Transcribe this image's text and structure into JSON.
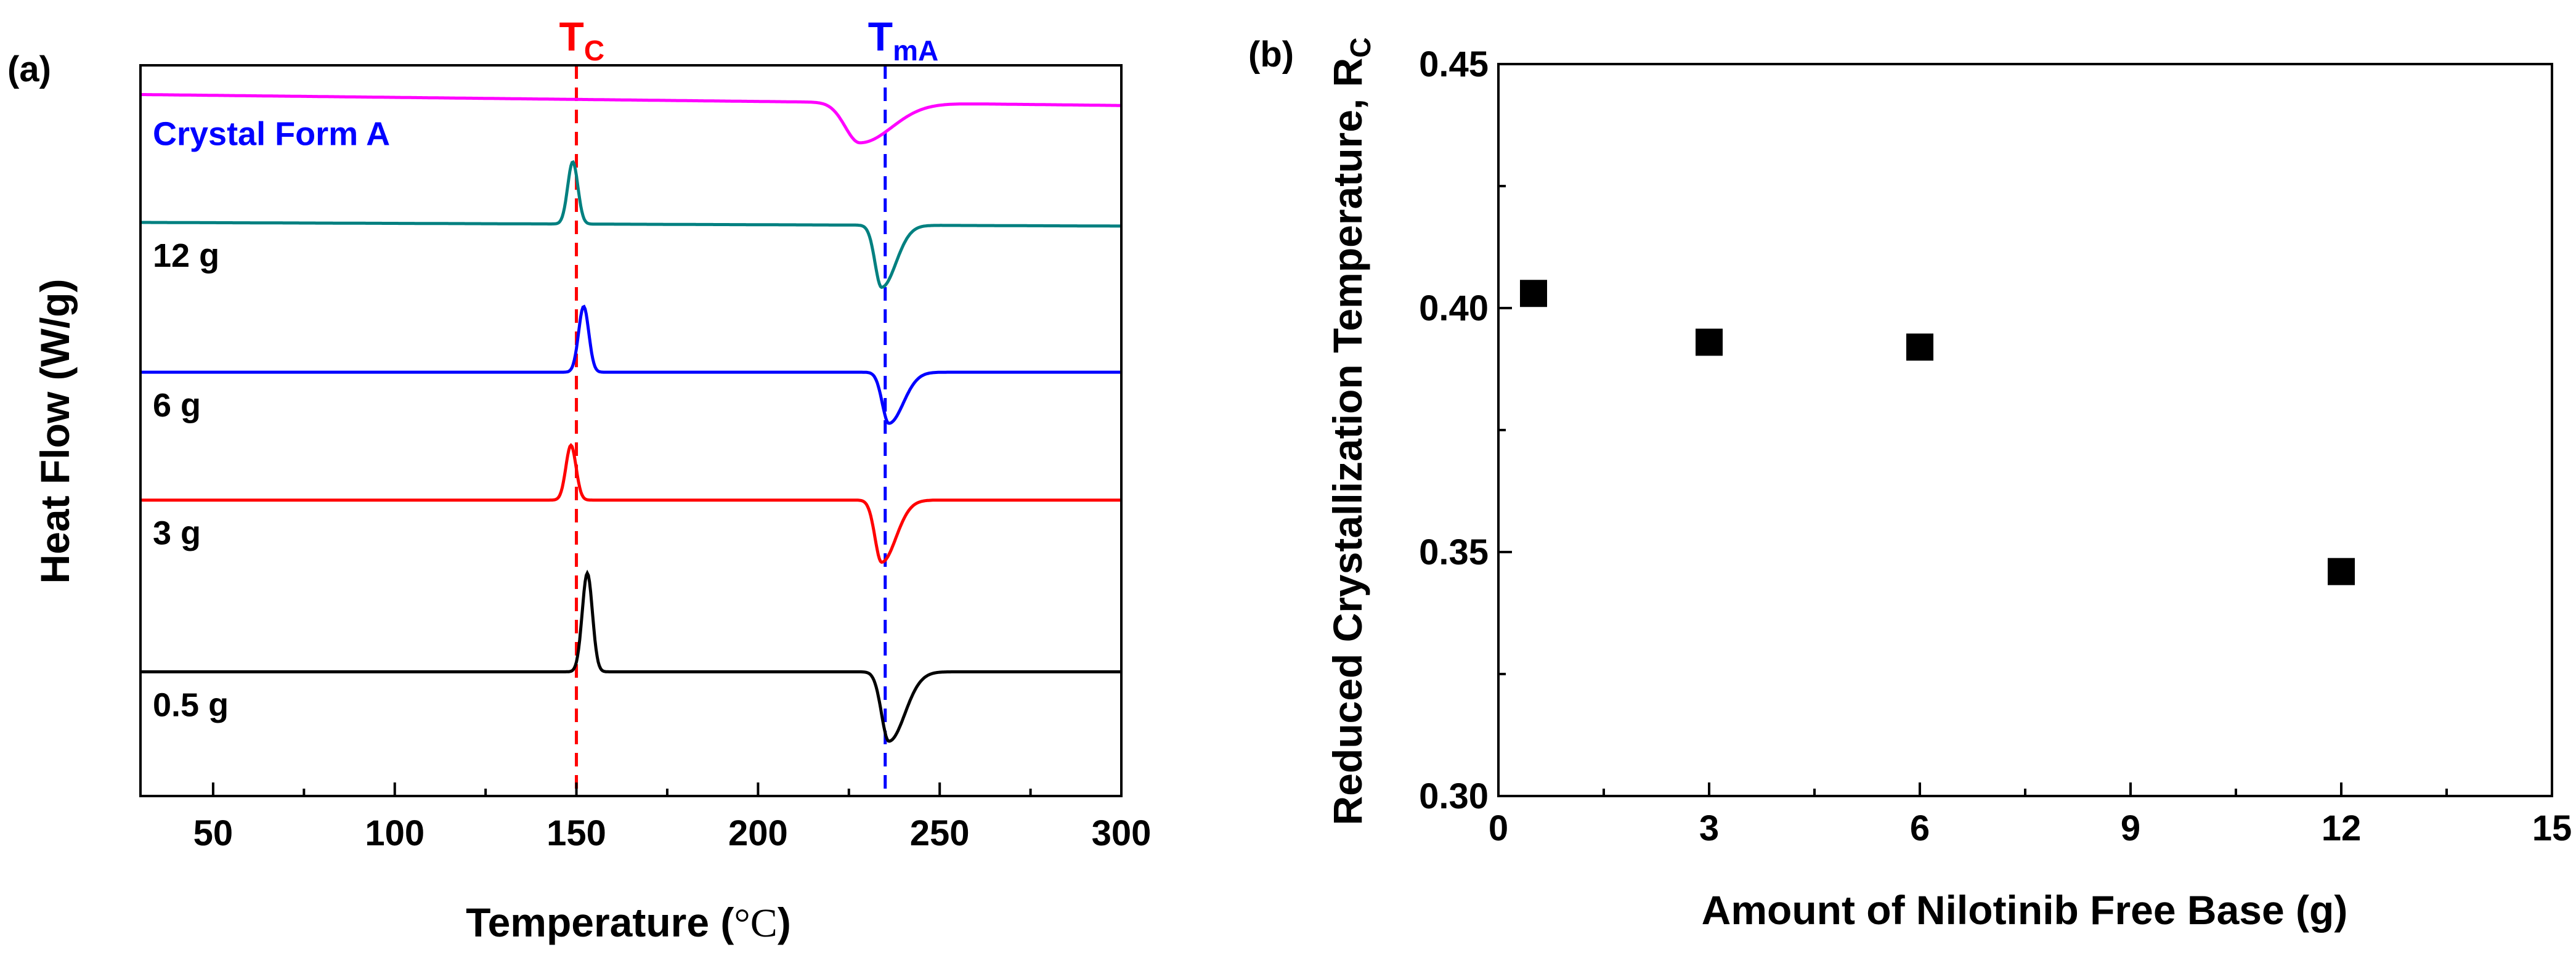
{
  "chart_data": [
    {
      "panel": "(a)",
      "type": "line",
      "xlabel": "Temperature (",
      "xlabel_unit": "°C",
      "xlabel_close": ")",
      "ylabel": "Heat Flow (W/g)",
      "xlim": [
        30,
        300
      ],
      "xticks": [
        50,
        100,
        150,
        200,
        250,
        300
      ],
      "yticks": false,
      "reference_lines": [
        {
          "label_main": "T",
          "label_sub": "C",
          "x": 150,
          "color": "#ff0000"
        },
        {
          "label_main": "T",
          "label_sub": "mA",
          "x": 235,
          "color": "#0000ff"
        }
      ],
      "series": [
        {
          "name": "Crystal Form A",
          "color": "#ff00ff",
          "label_color": "#0000ff",
          "baseline_start": 0.04,
          "baseline_end": 0.055,
          "features": [
            {
              "center": 228,
              "height": -0.055,
              "width": 4,
              "skew": 1
            }
          ]
        },
        {
          "name": "12 g",
          "color": "#008080",
          "label_color": "#000000",
          "baseline_start": 0.215,
          "baseline_end": 0.22,
          "features": [
            {
              "center": 149,
              "height": 0.085,
              "width": 1.4,
              "skew": 0
            },
            {
              "center": 234,
              "height": -0.085,
              "width": 1.8,
              "skew": 1
            }
          ]
        },
        {
          "name": "6 g",
          "color": "#0000ff",
          "label_color": "#000000",
          "baseline_start": 0.42,
          "baseline_end": 0.42,
          "features": [
            {
              "center": 152,
              "height": 0.09,
              "width": 1.4,
              "skew": 0
            },
            {
              "center": 236,
              "height": -0.07,
              "width": 1.8,
              "skew": 1
            }
          ]
        },
        {
          "name": "3 g",
          "color": "#ff0000",
          "label_color": "#000000",
          "baseline_start": 0.595,
          "baseline_end": 0.595,
          "features": [
            {
              "center": 148.5,
              "height": 0.075,
              "width": 1.4,
              "skew": 0
            },
            {
              "center": 234,
              "height": -0.085,
              "width": 1.8,
              "skew": 1
            }
          ]
        },
        {
          "name": "0.5 g",
          "color": "#000000",
          "label_color": "#000000",
          "baseline_start": 0.83,
          "baseline_end": 0.83,
          "features": [
            {
              "center": 153,
              "height": 0.135,
              "width": 1.4,
              "skew": 0
            },
            {
              "center": 236,
              "height": -0.095,
              "width": 2.0,
              "skew": 1
            }
          ]
        }
      ]
    },
    {
      "panel": "(b)",
      "type": "scatter",
      "xlabel": "Amount of Nilotinib Free Base (g)",
      "ylabel_main": "Reduced Crystallization Temperature, R",
      "ylabel_sub": "C",
      "xlim": [
        0,
        15
      ],
      "ylim": [
        0.3,
        0.45
      ],
      "xticks": [
        0,
        3,
        6,
        9,
        12,
        15
      ],
      "yticks": [
        0.3,
        0.35,
        0.4,
        0.45
      ],
      "ytick_labels": [
        "0.30",
        "0.35",
        "0.40",
        "0.45"
      ],
      "x": [
        0.5,
        3,
        6,
        12
      ],
      "y": [
        0.403,
        0.393,
        0.392,
        0.346
      ],
      "marker": "square",
      "color": "#000000"
    }
  ]
}
